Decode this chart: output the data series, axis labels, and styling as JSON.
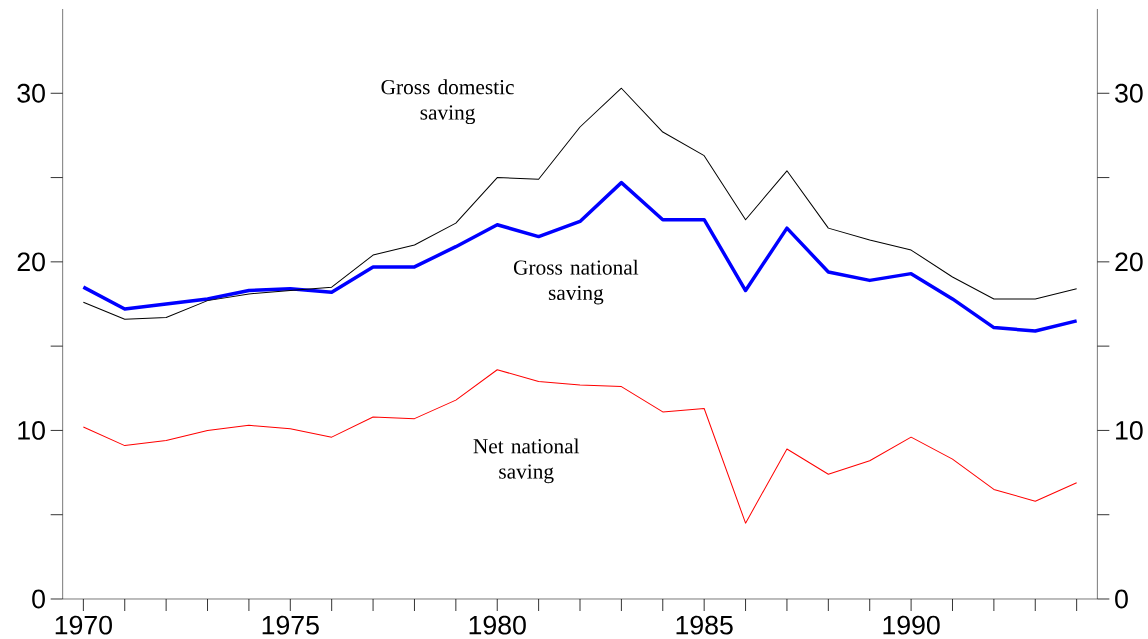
{
  "chart_data": {
    "type": "line",
    "x": [
      1970,
      1971,
      1972,
      1973,
      1974,
      1975,
      1976,
      1977,
      1978,
      1979,
      1980,
      1981,
      1982,
      1983,
      1984,
      1985,
      1986,
      1987,
      1988,
      1989,
      1990,
      1991,
      1992,
      1993,
      1994
    ],
    "series": [
      {
        "name": "Gross domestic saving",
        "color": "#000000",
        "values": [
          17.6,
          16.6,
          16.7,
          17.7,
          18.1,
          18.3,
          18.5,
          20.4,
          21.0,
          22.3,
          25.0,
          24.9,
          28.0,
          30.3,
          27.7,
          26.3,
          22.5,
          25.4,
          22.0,
          21.3,
          20.7,
          19.1,
          17.8,
          17.8,
          18.4
        ]
      },
      {
        "name": "Gross national saving",
        "color": "#0000ff",
        "values": [
          18.5,
          17.2,
          17.5,
          17.8,
          18.3,
          18.4,
          18.2,
          19.7,
          19.7,
          20.9,
          22.2,
          21.5,
          22.4,
          24.7,
          22.5,
          22.5,
          18.3,
          22.0,
          19.4,
          18.9,
          19.3,
          17.8,
          16.1,
          15.9,
          16.5
        ]
      },
      {
        "name": "Net national saving",
        "color": "#ff0000",
        "values": [
          10.2,
          9.1,
          9.4,
          10.0,
          10.3,
          10.1,
          9.6,
          10.8,
          10.7,
          11.8,
          13.6,
          12.9,
          12.7,
          12.6,
          11.1,
          11.3,
          4.5,
          8.9,
          7.4,
          8.2,
          9.6,
          8.3,
          6.5,
          5.8,
          6.9
        ]
      }
    ],
    "xlim": [
      1969.5,
      1994.5
    ],
    "xticks": [
      1970,
      {
        "value": 1971,
        "label": null
      },
      {
        "value": 1972,
        "label": null
      },
      {
        "value": 1973,
        "label": null
      },
      {
        "value": 1974,
        "label": null
      },
      1975,
      {
        "value": 1976,
        "label": null
      },
      {
        "value": 1977,
        "label": null
      },
      {
        "value": 1978,
        "label": null
      },
      {
        "value": 1979,
        "label": null
      },
      1980,
      {
        "value": 1981,
        "label": null
      },
      {
        "value": 1982,
        "label": null
      },
      {
        "value": 1983,
        "label": null
      },
      {
        "value": 1984,
        "label": null
      },
      1985,
      {
        "value": 1986,
        "label": null
      },
      {
        "value": 1987,
        "label": null
      },
      {
        "value": 1988,
        "label": null
      },
      {
        "value": 1989,
        "label": null
      },
      1990,
      {
        "value": 1991,
        "label": null
      },
      {
        "value": 1992,
        "label": null
      },
      {
        "value": 1993,
        "label": null
      },
      {
        "value": 1994,
        "label": null
      }
    ],
    "ylim": [
      0,
      35
    ],
    "yticks": [
      0,
      {
        "value": 5,
        "label": null
      },
      10,
      {
        "value": 15,
        "label": null
      },
      20,
      {
        "value": 25,
        "label": null
      },
      30
    ],
    "y2lim": [
      0,
      35
    ],
    "y2ticks": [
      0,
      {
        "value": 5,
        "label": null
      },
      10,
      {
        "value": 15,
        "label": null
      },
      20,
      {
        "value": 25,
        "label": null
      },
      30
    ]
  }
}
